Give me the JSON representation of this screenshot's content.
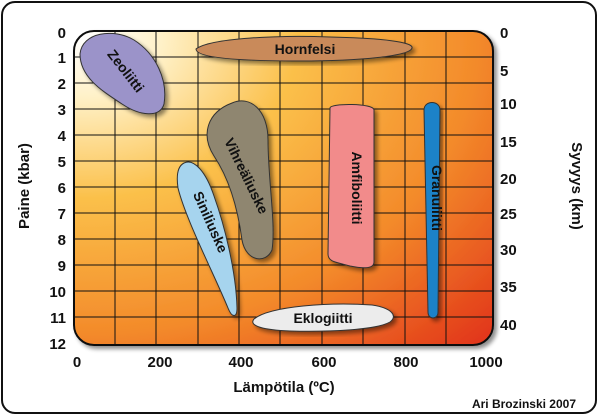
{
  "axes": {
    "x_title": "Lämpötila (ºC)",
    "y_left_title": "Paine (kbar)",
    "y_right_title": "Syvyys (km)",
    "x_ticks": [
      "0",
      "200",
      "400",
      "600",
      "800",
      "1000"
    ],
    "y_left_ticks": [
      "0",
      "1",
      "2",
      "3",
      "4",
      "5",
      "6",
      "7",
      "8",
      "9",
      "10",
      "11",
      "12"
    ],
    "y_right_ticks": [
      "0",
      "5",
      "10",
      "15",
      "20",
      "25",
      "30",
      "35",
      "40"
    ]
  },
  "facies": {
    "zeoliitti": {
      "label": "Zeoliitti",
      "color": "#9b93c9"
    },
    "hornfelsi": {
      "label": "Hornfelsi",
      "color": "#c98a5a"
    },
    "vihrealiuske": {
      "label": "Vihreäliuske",
      "color": "#8f8670"
    },
    "siniliuske": {
      "label": "Siniliuske",
      "color": "#a6d4ee"
    },
    "amfiboliitti": {
      "label": "Amfiboliitti",
      "color": "#f28b8b"
    },
    "granuliitti": {
      "label": "Granuliitti",
      "color": "#1f82c8"
    },
    "eklogiitti": {
      "label": "Eklogiitti",
      "color": "#ececec"
    }
  },
  "credit": "Ari Brozinski 2007",
  "colors": {
    "background_light": "#fff6e0",
    "background_orange": "#f7b83a",
    "background_red": "#e83a1c",
    "grid": "#111111"
  }
}
